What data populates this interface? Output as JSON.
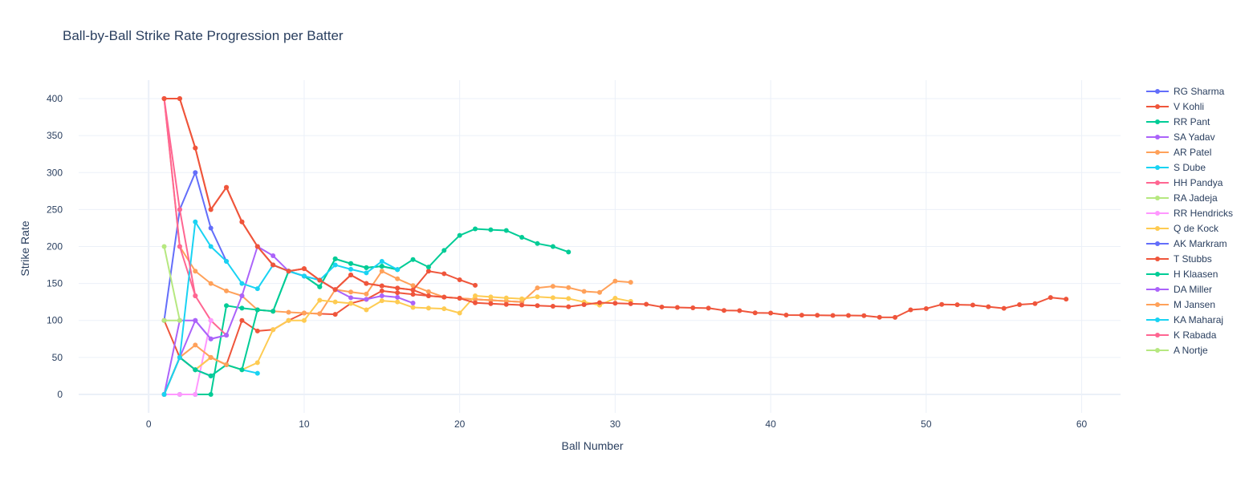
{
  "chart_data": {
    "type": "line",
    "title": "Ball-by-Ball Strike Rate Progression per Batter",
    "xlabel": "Ball Number",
    "ylabel": "Strike Rate",
    "xlim": [
      -4.5,
      62.5
    ],
    "ylim": [
      -25,
      425
    ],
    "xticks": [
      0,
      10,
      20,
      30,
      40,
      50,
      60
    ],
    "yticks": [
      0,
      50,
      100,
      150,
      200,
      250,
      300,
      350,
      400
    ],
    "grid": true,
    "legend_position": "right",
    "series": [
      {
        "name": "RG Sharma",
        "color": "#636efa",
        "values": [
          100,
          250,
          300,
          225,
          180
        ]
      },
      {
        "name": "V Kohli",
        "color": "#EF553B",
        "values": [
          100,
          50,
          33.3,
          50,
          40,
          100,
          85.7,
          87.5,
          100,
          110,
          109.1,
          108.3,
          123.1,
          128.6,
          140,
          137.5,
          135.3,
          133.3,
          131.6,
          130,
          128.6,
          127.3,
          126.1,
          125
        ]
      },
      {
        "name": "RR Pant",
        "color": "#00cc96",
        "values": [
          0,
          0,
          0,
          0,
          120,
          116.7,
          114.3,
          112.5,
          166.7,
          160,
          145.5,
          183.3,
          176.9,
          171.4,
          173.3,
          168.8
        ]
      },
      {
        "name": "SA Yadav",
        "color": "#ab63fa",
        "values": [
          0,
          50,
          100,
          75,
          80
        ]
      },
      {
        "name": "AR Patel",
        "color": "#FFA15A",
        "values": [
          400,
          200,
          166.7,
          150,
          140,
          133.3,
          114.3,
          112.5,
          111.1,
          110,
          109.1,
          141.7,
          138.5,
          135.7,
          166.7,
          156.3,
          147.1,
          138.9,
          131.6,
          130,
          128.6,
          127.3,
          126.1,
          125,
          144,
          146.2,
          144.4,
          139.3,
          137.9,
          153.3,
          151.6
        ]
      },
      {
        "name": "S Dube",
        "color": "#19d3f3",
        "values": [
          0,
          50,
          33.3,
          25,
          40,
          33.3,
          28.6
        ]
      },
      {
        "name": "HH Pandya",
        "color": "#FF6692",
        "values": [
          400,
          200,
          133.3,
          100,
          80
        ]
      },
      {
        "name": "RA Jadeja",
        "color": "#B6E880",
        "values": [
          200,
          100
        ]
      },
      {
        "name": "RR Hendricks",
        "color": "#FF97FF",
        "values": [
          0,
          0,
          0,
          100
        ]
      },
      {
        "name": "Q de Kock",
        "color": "#FECB52",
        "values": [
          0,
          50,
          33.3,
          50,
          40,
          33.3,
          42.9,
          87.5,
          100,
          100,
          127.3,
          125,
          123.1,
          114.3,
          126.7,
          125,
          117.6,
          116.7,
          115.8,
          110,
          133.3,
          131.8,
          130.4,
          129.2,
          132,
          130.8,
          129.6,
          125,
          120.7,
          130,
          125.8
        ]
      },
      {
        "name": "AK Markram",
        "color": "#636efa",
        "values": [
          0,
          50,
          33.3,
          25
        ]
      },
      {
        "name": "T Stubbs",
        "color": "#EF553B",
        "values": [
          400,
          400,
          333.3,
          250,
          280,
          233.3,
          200,
          175,
          166.7,
          170,
          154.5,
          141.7,
          161.5,
          150,
          146.7,
          143.8,
          141.2,
          166.7,
          163.2,
          155,
          147.6
        ]
      },
      {
        "name": "H Klaasen",
        "color": "#00cc96",
        "values": [
          0,
          50,
          33.3,
          25,
          40,
          33.3,
          114.3,
          112.5,
          166.7,
          160,
          145.5,
          183.3,
          176.9,
          171.4,
          173.3,
          168.8,
          182.4,
          172.2,
          194.7,
          215,
          223.8,
          222.7,
          221.7,
          212.5,
          204,
          200,
          192.6
        ]
      },
      {
        "name": "DA Miller",
        "color": "#ab63fa",
        "values": [
          0,
          100,
          100,
          75,
          80,
          133.3,
          200,
          187.5,
          166.7,
          160,
          154.5,
          141.7,
          130.8,
          128.6,
          133.3,
          131.3,
          123.5
        ]
      },
      {
        "name": "M Jansen",
        "color": "#FFA15A",
        "values": [
          0,
          50,
          66.7,
          50,
          40
        ]
      },
      {
        "name": "KA Maharaj",
        "color": "#19d3f3",
        "values": [
          0,
          50,
          233.3,
          200,
          180,
          150,
          142.9,
          175,
          166.7,
          160,
          154.5,
          175,
          169.2,
          164.3,
          180,
          168.8
        ]
      },
      {
        "name": "K Rabada",
        "color": "#FF6692",
        "values": [
          400,
          250,
          133.3
        ]
      },
      {
        "name": "A Nortje",
        "color": "#B6E880",
        "values": [
          100,
          100
        ]
      },
      {
        "name": "",
        "color": "#EF553B",
        "values": [
          400,
          400,
          333.3,
          250,
          280,
          233.3,
          200,
          175,
          166.7,
          170,
          154.5,
          141.7,
          161.5,
          150,
          146.7,
          143.8,
          141.2,
          133.3,
          131.6,
          130,
          123.8,
          122.7,
          121.7,
          120.8,
          120,
          119.2,
          118.5,
          121.4,
          124.1,
          123.3,
          122.6,
          121.9,
          118.2,
          117.6,
          117.1,
          116.7,
          113.5,
          113.2,
          110.3,
          110,
          107.3,
          107.1,
          107,
          106.8,
          106.7,
          106.5,
          104.3,
          104.2,
          114.3,
          116,
          121.6,
          121.2,
          120.8,
          118.5,
          116.4,
          121.4,
          122.8,
          131,
          128.8
        ]
      }
    ]
  }
}
